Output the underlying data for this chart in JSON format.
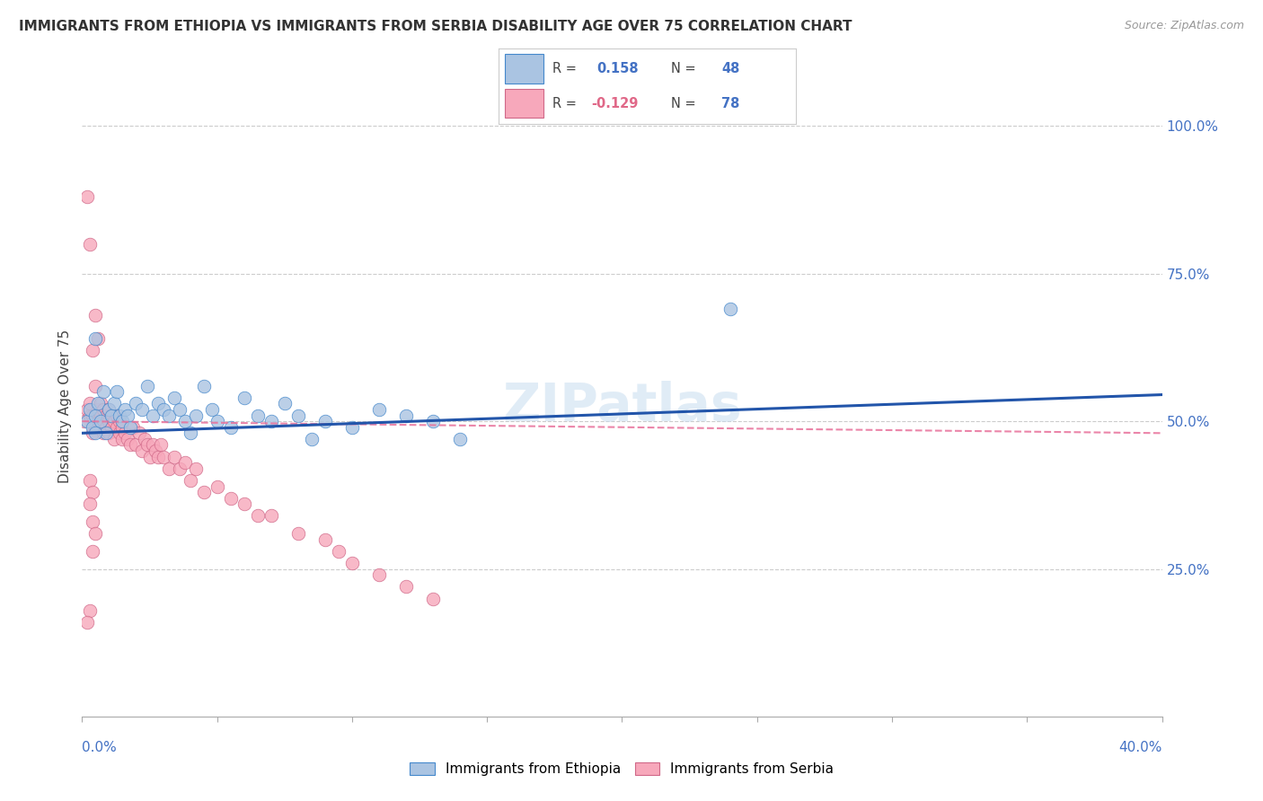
{
  "title": "IMMIGRANTS FROM ETHIOPIA VS IMMIGRANTS FROM SERBIA DISABILITY AGE OVER 75 CORRELATION CHART",
  "source": "Source: ZipAtlas.com",
  "ylabel": "Disability Age Over 75",
  "legend_ethiopia": "Immigrants from Ethiopia",
  "legend_serbia": "Immigrants from Serbia",
  "R_ethiopia": 0.158,
  "N_ethiopia": 48,
  "R_serbia": -0.129,
  "N_serbia": 78,
  "ethiopia_color": "#aac4e2",
  "serbia_color": "#f7a8bb",
  "ethiopia_line_color": "#2255aa",
  "serbia_line_color": "#e8709a",
  "watermark": "ZIPatlas",
  "background_color": "#ffffff",
  "x_min": 0.0,
  "x_max": 0.4,
  "y_min": 0.0,
  "y_max": 1.05,
  "ethiopia_scatter_x": [
    0.002,
    0.003,
    0.004,
    0.005,
    0.005,
    0.006,
    0.007,
    0.008,
    0.009,
    0.01,
    0.011,
    0.012,
    0.013,
    0.014,
    0.015,
    0.016,
    0.017,
    0.018,
    0.02,
    0.022,
    0.024,
    0.026,
    0.028,
    0.03,
    0.032,
    0.034,
    0.036,
    0.038,
    0.04,
    0.042,
    0.045,
    0.048,
    0.05,
    0.055,
    0.06,
    0.065,
    0.07,
    0.075,
    0.08,
    0.085,
    0.09,
    0.1,
    0.11,
    0.12,
    0.13,
    0.14,
    0.24,
    0.005
  ],
  "ethiopia_scatter_y": [
    0.5,
    0.52,
    0.49,
    0.64,
    0.51,
    0.53,
    0.5,
    0.55,
    0.48,
    0.52,
    0.51,
    0.53,
    0.55,
    0.51,
    0.5,
    0.52,
    0.51,
    0.49,
    0.53,
    0.52,
    0.56,
    0.51,
    0.53,
    0.52,
    0.51,
    0.54,
    0.52,
    0.5,
    0.48,
    0.51,
    0.56,
    0.52,
    0.5,
    0.49,
    0.54,
    0.51,
    0.5,
    0.53,
    0.51,
    0.47,
    0.5,
    0.49,
    0.52,
    0.51,
    0.5,
    0.47,
    0.69,
    0.48
  ],
  "serbia_scatter_x": [
    0.001,
    0.002,
    0.002,
    0.003,
    0.003,
    0.003,
    0.004,
    0.004,
    0.004,
    0.005,
    0.005,
    0.005,
    0.006,
    0.006,
    0.006,
    0.007,
    0.007,
    0.007,
    0.008,
    0.008,
    0.008,
    0.009,
    0.009,
    0.01,
    0.01,
    0.01,
    0.011,
    0.011,
    0.012,
    0.012,
    0.013,
    0.013,
    0.014,
    0.014,
    0.015,
    0.015,
    0.016,
    0.017,
    0.018,
    0.019,
    0.02,
    0.021,
    0.022,
    0.023,
    0.024,
    0.025,
    0.026,
    0.027,
    0.028,
    0.029,
    0.03,
    0.032,
    0.034,
    0.036,
    0.038,
    0.04,
    0.042,
    0.045,
    0.05,
    0.055,
    0.06,
    0.065,
    0.07,
    0.08,
    0.09,
    0.095,
    0.1,
    0.11,
    0.12,
    0.13,
    0.003,
    0.004,
    0.003,
    0.004,
    0.005,
    0.004,
    0.003,
    0.002
  ],
  "serbia_scatter_y": [
    0.5,
    0.52,
    0.88,
    0.51,
    0.53,
    0.8,
    0.48,
    0.62,
    0.51,
    0.49,
    0.56,
    0.68,
    0.5,
    0.52,
    0.64,
    0.49,
    0.51,
    0.53,
    0.5,
    0.48,
    0.52,
    0.49,
    0.51,
    0.5,
    0.48,
    0.52,
    0.49,
    0.51,
    0.5,
    0.47,
    0.49,
    0.51,
    0.48,
    0.5,
    0.47,
    0.49,
    0.48,
    0.47,
    0.46,
    0.49,
    0.46,
    0.48,
    0.45,
    0.47,
    0.46,
    0.44,
    0.46,
    0.45,
    0.44,
    0.46,
    0.44,
    0.42,
    0.44,
    0.42,
    0.43,
    0.4,
    0.42,
    0.38,
    0.39,
    0.37,
    0.36,
    0.34,
    0.34,
    0.31,
    0.3,
    0.28,
    0.26,
    0.24,
    0.22,
    0.2,
    0.4,
    0.38,
    0.36,
    0.33,
    0.31,
    0.28,
    0.18,
    0.16
  ],
  "eth_line_x0": 0.0,
  "eth_line_x1": 0.4,
  "eth_line_y0": 0.48,
  "eth_line_y1": 0.545,
  "srb_line_x0": 0.0,
  "srb_line_x1": 0.4,
  "srb_line_y0": 0.5,
  "srb_line_y1": 0.48
}
